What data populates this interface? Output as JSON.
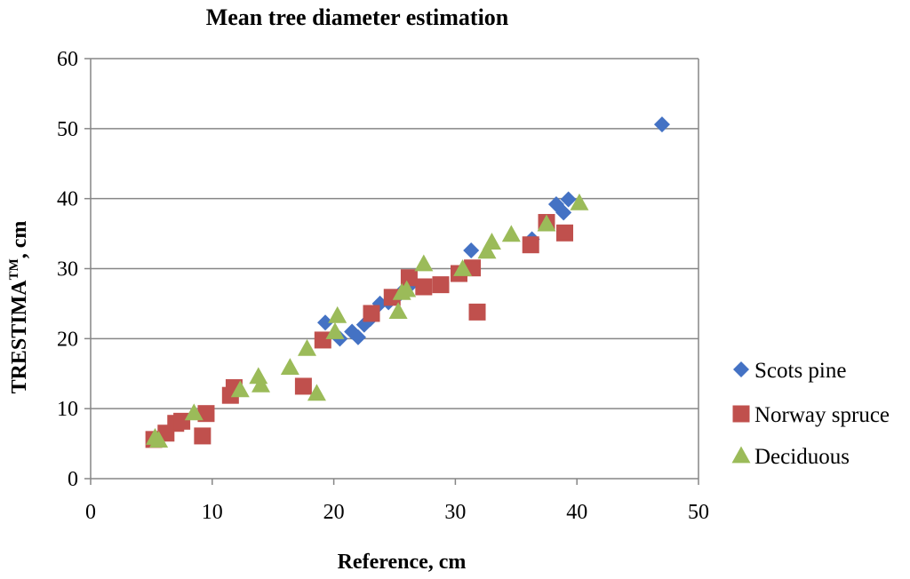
{
  "chart_data": {
    "type": "scatter",
    "title": "Mean tree diameter estimation",
    "xlabel": "Reference, cm",
    "ylabel_main": "TRESTIMA",
    "ylabel_sup": "TM",
    "ylabel_suffix": ", cm",
    "xlim": [
      0,
      50
    ],
    "ylim": [
      0,
      60
    ],
    "xticks": [
      0,
      10,
      20,
      30,
      40,
      50
    ],
    "yticks": [
      0,
      10,
      20,
      30,
      40,
      50,
      60
    ],
    "grid": "horizontal",
    "legend_position": "right",
    "series": [
      {
        "name": "Scots pine",
        "marker": "diamond",
        "color": "#4472C4",
        "points": [
          [
            19.3,
            22.3
          ],
          [
            20.5,
            20.0
          ],
          [
            21.5,
            21.0
          ],
          [
            22.0,
            20.2
          ],
          [
            22.5,
            22.0
          ],
          [
            23.0,
            22.8
          ],
          [
            23.8,
            25.0
          ],
          [
            24.5,
            25.2
          ],
          [
            25.5,
            26.5
          ],
          [
            26.2,
            27.5
          ],
          [
            31.3,
            32.6
          ],
          [
            36.3,
            34.2
          ],
          [
            38.3,
            39.2
          ],
          [
            38.9,
            38.0
          ],
          [
            39.3,
            39.9
          ],
          [
            47.0,
            50.6
          ]
        ]
      },
      {
        "name": "Norway spruce",
        "marker": "square",
        "color": "#C0504D",
        "points": [
          [
            5.2,
            5.6
          ],
          [
            6.2,
            6.5
          ],
          [
            7.0,
            7.9
          ],
          [
            7.5,
            8.2
          ],
          [
            9.2,
            6.1
          ],
          [
            9.5,
            9.3
          ],
          [
            11.5,
            11.9
          ],
          [
            11.8,
            13.0
          ],
          [
            17.5,
            13.2
          ],
          [
            19.1,
            19.8
          ],
          [
            23.1,
            23.6
          ],
          [
            24.8,
            25.9
          ],
          [
            26.2,
            28.7
          ],
          [
            27.4,
            27.4
          ],
          [
            28.8,
            27.7
          ],
          [
            30.3,
            29.3
          ],
          [
            31.4,
            30.1
          ],
          [
            31.8,
            23.8
          ],
          [
            36.2,
            33.4
          ],
          [
            37.5,
            36.6
          ],
          [
            39.0,
            35.1
          ]
        ]
      },
      {
        "name": "Deciduous",
        "marker": "triangle",
        "color": "#9BBB59",
        "points": [
          [
            5.3,
            5.9
          ],
          [
            5.6,
            5.5
          ],
          [
            8.5,
            9.4
          ],
          [
            12.3,
            12.7
          ],
          [
            13.8,
            14.6
          ],
          [
            14.0,
            13.4
          ],
          [
            16.4,
            15.9
          ],
          [
            17.8,
            18.6
          ],
          [
            18.6,
            12.2
          ],
          [
            20.1,
            21.0
          ],
          [
            20.3,
            23.3
          ],
          [
            25.3,
            23.9
          ],
          [
            25.6,
            26.6
          ],
          [
            26.0,
            27.0
          ],
          [
            27.4,
            30.7
          ],
          [
            30.6,
            30.0
          ],
          [
            32.6,
            32.5
          ],
          [
            33.0,
            33.8
          ],
          [
            34.6,
            34.9
          ],
          [
            37.5,
            36.4
          ],
          [
            40.2,
            39.4
          ]
        ]
      }
    ]
  }
}
